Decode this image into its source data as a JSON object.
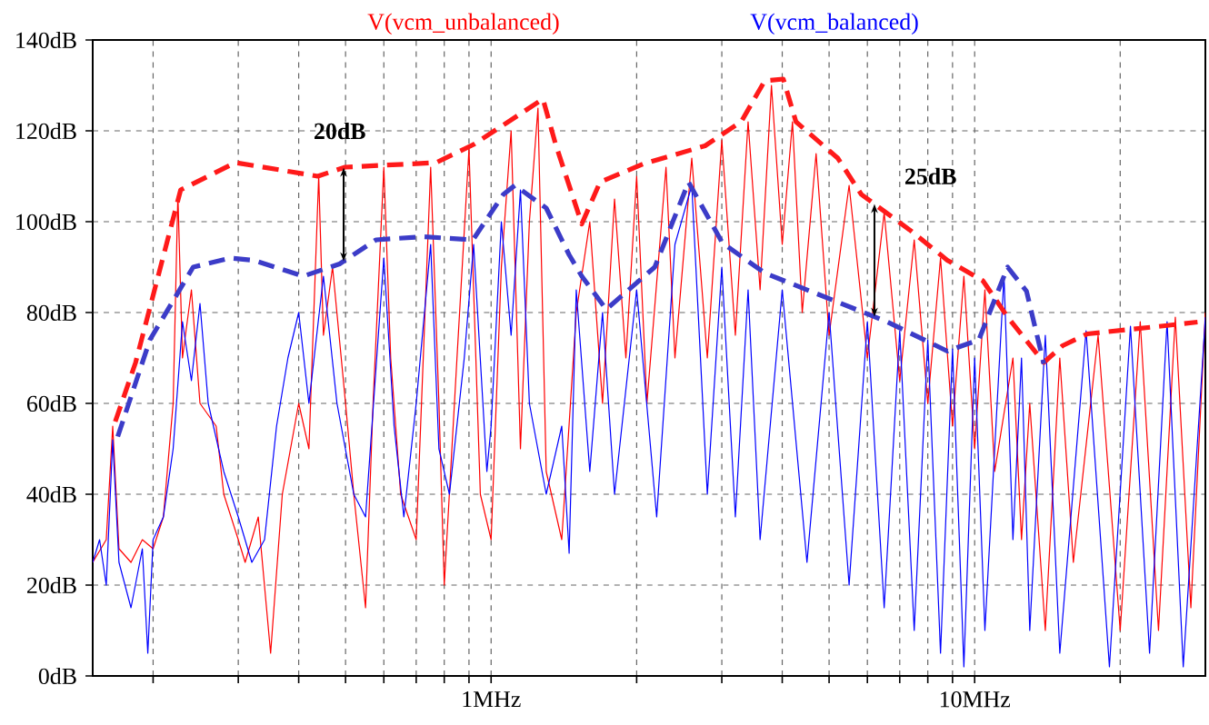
{
  "chart_data": {
    "type": "line",
    "log": "x",
    "grid": true,
    "xlim": [
      0.15,
      30
    ],
    "ylim": [
      0,
      140
    ],
    "xticks": [
      {
        "value": 0.2,
        "label": null
      },
      {
        "value": 0.3,
        "label": null
      },
      {
        "value": 0.4,
        "label": null
      },
      {
        "value": 0.5,
        "label": null
      },
      {
        "value": 0.6,
        "label": null
      },
      {
        "value": 0.7,
        "label": null
      },
      {
        "value": 0.8,
        "label": null
      },
      {
        "value": 0.9,
        "label": null
      },
      {
        "value": 1,
        "label": "1MHz"
      },
      {
        "value": 2,
        "label": null
      },
      {
        "value": 3,
        "label": null
      },
      {
        "value": 4,
        "label": null
      },
      {
        "value": 5,
        "label": null
      },
      {
        "value": 6,
        "label": null
      },
      {
        "value": 7,
        "label": null
      },
      {
        "value": 8,
        "label": null
      },
      {
        "value": 9,
        "label": null
      },
      {
        "value": 10,
        "label": "10MHz"
      },
      {
        "value": 20,
        "label": null
      }
    ],
    "yticks": [
      {
        "value": 0,
        "label": "0dB"
      },
      {
        "value": 20,
        "label": "20dB"
      },
      {
        "value": 40,
        "label": "40dB"
      },
      {
        "value": 60,
        "label": "60dB"
      },
      {
        "value": 80,
        "label": "80dB"
      },
      {
        "value": 100,
        "label": "100dB"
      },
      {
        "value": 120,
        "label": "120dB"
      },
      {
        "value": 140,
        "label": "140dB"
      }
    ],
    "series": [
      {
        "name": "V(vcm_unbalanced)",
        "color": "#ff0000",
        "line_style": "solid",
        "x": [
          0.15,
          0.16,
          0.165,
          0.17,
          0.18,
          0.19,
          0.2,
          0.21,
          0.22,
          0.225,
          0.23,
          0.24,
          0.25,
          0.27,
          0.28,
          0.3,
          0.31,
          0.33,
          0.35,
          0.37,
          0.4,
          0.42,
          0.44,
          0.45,
          0.47,
          0.5,
          0.52,
          0.55,
          0.57,
          0.6,
          0.62,
          0.65,
          0.7,
          0.75,
          0.78,
          0.8,
          0.85,
          0.9,
          0.95,
          1.0,
          1.05,
          1.1,
          1.15,
          1.2,
          1.25,
          1.3,
          1.4,
          1.5,
          1.6,
          1.7,
          1.8,
          1.9,
          2.0,
          2.1,
          2.3,
          2.4,
          2.6,
          2.8,
          3.0,
          3.2,
          3.4,
          3.6,
          3.8,
          4.0,
          4.2,
          4.4,
          4.7,
          5.0,
          5.5,
          6.0,
          6.5,
          7.0,
          7.5,
          8.0,
          8.5,
          9.0,
          9.5,
          10,
          10.5,
          11,
          12,
          12.5,
          13,
          14,
          15,
          16,
          18,
          20,
          22,
          24,
          26,
          28,
          30
        ],
        "values": [
          25,
          30,
          55,
          28,
          25,
          30,
          28,
          35,
          60,
          106,
          70,
          85,
          60,
          55,
          40,
          30,
          25,
          35,
          5,
          40,
          60,
          50,
          110,
          75,
          90,
          60,
          40,
          15,
          60,
          112,
          70,
          40,
          30,
          112,
          60,
          20,
          70,
          116,
          40,
          30,
          90,
          120,
          50,
          100,
          125,
          45,
          30,
          80,
          100,
          60,
          105,
          70,
          110,
          60,
          112,
          70,
          114,
          70,
          118,
          75,
          122,
          85,
          130,
          95,
          122,
          80,
          115,
          75,
          108,
          70,
          102,
          65,
          96,
          60,
          92,
          55,
          88,
          50,
          85,
          45,
          70,
          30,
          60,
          10,
          70,
          25,
          75,
          10,
          78,
          10,
          79,
          15,
          80
        ]
      },
      {
        "name": "V(vcm_balanced)",
        "color": "#0000ff",
        "line_style": "solid",
        "x": [
          0.15,
          0.155,
          0.16,
          0.165,
          0.17,
          0.18,
          0.19,
          0.195,
          0.2,
          0.21,
          0.22,
          0.23,
          0.24,
          0.25,
          0.26,
          0.28,
          0.3,
          0.32,
          0.34,
          0.36,
          0.38,
          0.4,
          0.42,
          0.45,
          0.48,
          0.52,
          0.55,
          0.58,
          0.6,
          0.63,
          0.66,
          0.7,
          0.75,
          0.78,
          0.82,
          0.88,
          0.92,
          0.98,
          1.0,
          1.05,
          1.1,
          1.15,
          1.2,
          1.3,
          1.4,
          1.45,
          1.5,
          1.6,
          1.7,
          1.8,
          2.0,
          2.2,
          2.4,
          2.6,
          2.8,
          3.0,
          3.2,
          3.4,
          3.6,
          4.0,
          4.5,
          5.0,
          5.5,
          6.0,
          6.5,
          7.0,
          7.5,
          8.0,
          8.5,
          9.0,
          9.5,
          10,
          10.5,
          11.5,
          12,
          12.5,
          13,
          14,
          15,
          17,
          19,
          21,
          23,
          25,
          27,
          30
        ],
        "values": [
          25,
          30,
          20,
          52,
          25,
          15,
          28,
          5,
          30,
          35,
          50,
          78,
          65,
          82,
          60,
          45,
          35,
          25,
          30,
          55,
          70,
          80,
          60,
          88,
          60,
          40,
          35,
          70,
          92,
          55,
          35,
          60,
          95,
          50,
          40,
          70,
          95,
          45,
          55,
          100,
          75,
          107,
          60,
          40,
          55,
          27,
          85,
          45,
          80,
          40,
          85,
          35,
          95,
          108,
          40,
          90,
          35,
          85,
          30,
          85,
          25,
          80,
          20,
          78,
          15,
          76,
          10,
          74,
          5,
          72,
          2,
          70,
          10,
          88,
          30,
          70,
          10,
          75,
          5,
          76,
          2,
          77,
          5,
          78,
          2,
          79
        ]
      },
      {
        "color": "#ff1a1a",
        "line_style": "dashed",
        "x": [
          0.167,
          0.184,
          0.228,
          0.296,
          0.385,
          0.438,
          0.499,
          0.77,
          0.92,
          1.28,
          1.36,
          1.54,
          1.68,
          2.06,
          2.77,
          3.29,
          3.68,
          4.02,
          4.27,
          5.21,
          5.83,
          7.38,
          8.78,
          10.4,
          11.7,
          13.9,
          15.2,
          17.1,
          24.3,
          28.9
        ],
        "values": [
          56,
          69,
          107,
          113,
          111,
          110,
          112,
          113,
          117,
          127,
          117,
          99.5,
          108.7,
          112.7,
          116.7,
          122,
          131,
          131.4,
          122,
          114,
          106,
          98,
          91.5,
          87,
          79,
          69,
          72.7,
          75.3,
          77,
          77.9
        ]
      },
      {
        "color": "#3c3cc8",
        "line_style": "dashed",
        "x": [
          0.169,
          0.197,
          0.242,
          0.289,
          0.323,
          0.409,
          0.486,
          0.578,
          0.725,
          0.917,
          1.06,
          1.12,
          1.3,
          1.45,
          1.54,
          1.73,
          2.18,
          2.56,
          3.01,
          3.68,
          6.58,
          8.78,
          10.2,
          11.7,
          12.8,
          13.9
        ],
        "values": [
          52.7,
          74,
          90,
          92,
          91.5,
          88,
          90.7,
          96,
          96.7,
          96,
          106,
          108,
          103,
          92.7,
          88,
          80.7,
          90,
          108.7,
          95.3,
          88.7,
          78,
          71.5,
          74,
          90,
          84.7,
          68.7
        ]
      }
    ],
    "annotations": [
      "20dB",
      "25dB"
    ]
  }
}
